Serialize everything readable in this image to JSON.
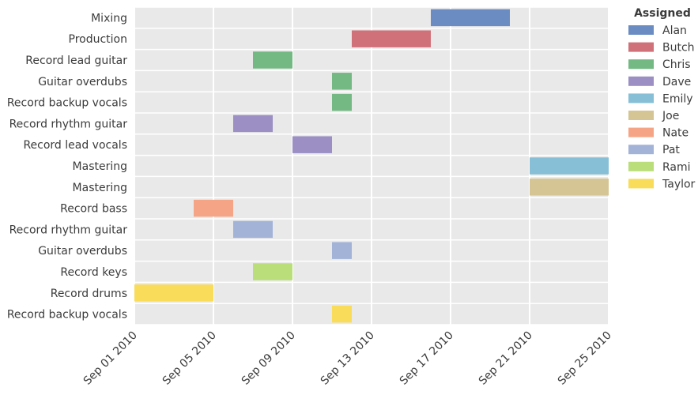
{
  "chart_data": {
    "type": "gantt",
    "title": "",
    "xlabel": "",
    "ylabel": "",
    "x_axis_type": "date",
    "xlim": [
      "2010-09-01",
      "2010-09-25"
    ],
    "x_ticks": [
      "2010-09-01",
      "2010-09-05",
      "2010-09-09",
      "2010-09-13",
      "2010-09-17",
      "2010-09-21",
      "2010-09-25"
    ],
    "x_tick_labels": [
      "Sep 01 2010",
      "Sep 05 2010",
      "Sep 09 2010",
      "Sep 13 2010",
      "Sep 17 2010",
      "Sep 21 2010",
      "Sep 25 2010"
    ],
    "grid": true,
    "legend": {
      "title": "Assigned",
      "placement": "right"
    },
    "tasks": [
      {
        "label": "Mixing",
        "assigned": "Alan",
        "start": "2010-09-16",
        "end": "2010-09-20"
      },
      {
        "label": "Production",
        "assigned": "Butch",
        "start": "2010-09-12",
        "end": "2010-09-16"
      },
      {
        "label": "Record lead guitar",
        "assigned": "Chris",
        "start": "2010-09-07",
        "end": "2010-09-09"
      },
      {
        "label": "Guitar overdubs",
        "assigned": "Chris",
        "start": "2010-09-11",
        "end": "2010-09-12"
      },
      {
        "label": "Record backup vocals",
        "assigned": "Chris",
        "start": "2010-09-11",
        "end": "2010-09-12"
      },
      {
        "label": "Record rhythm guitar",
        "assigned": "Dave",
        "start": "2010-09-06",
        "end": "2010-09-08"
      },
      {
        "label": "Record lead vocals",
        "assigned": "Dave",
        "start": "2010-09-09",
        "end": "2010-09-11"
      },
      {
        "label": "Mastering",
        "assigned": "Emily",
        "start": "2010-09-21",
        "end": "2010-09-25"
      },
      {
        "label": "Mastering",
        "assigned": "Joe",
        "start": "2010-09-21",
        "end": "2010-09-25"
      },
      {
        "label": "Record bass",
        "assigned": "Nate",
        "start": "2010-09-04",
        "end": "2010-09-06"
      },
      {
        "label": "Record rhythm guitar",
        "assigned": "Pat",
        "start": "2010-09-06",
        "end": "2010-09-08"
      },
      {
        "label": "Guitar overdubs",
        "assigned": "Pat",
        "start": "2010-09-11",
        "end": "2010-09-12"
      },
      {
        "label": "Record keys",
        "assigned": "Rami",
        "start": "2010-09-07",
        "end": "2010-09-09"
      },
      {
        "label": "Record drums",
        "assigned": "Taylor",
        "start": "2010-09-01",
        "end": "2010-09-05"
      },
      {
        "label": "Record backup vocals",
        "assigned": "Taylor",
        "start": "2010-09-11",
        "end": "2010-09-12"
      }
    ],
    "series": [
      {
        "name": "Alan",
        "color": "#6b8cc2"
      },
      {
        "name": "Butch",
        "color": "#d0717a"
      },
      {
        "name": "Chris",
        "color": "#74b883"
      },
      {
        "name": "Dave",
        "color": "#9b8fc4"
      },
      {
        "name": "Emily",
        "color": "#86bfd6"
      },
      {
        "name": "Joe",
        "color": "#d6c594"
      },
      {
        "name": "Nate",
        "color": "#f5a585"
      },
      {
        "name": "Pat",
        "color": "#a3b3d8"
      },
      {
        "name": "Rami",
        "color": "#b9de7a"
      },
      {
        "name": "Taylor",
        "color": "#f8dc5a"
      }
    ],
    "colors": {
      "plot_background": "#e9e9e9",
      "grid": "#ffffff",
      "text": "#3b3b3b"
    }
  }
}
